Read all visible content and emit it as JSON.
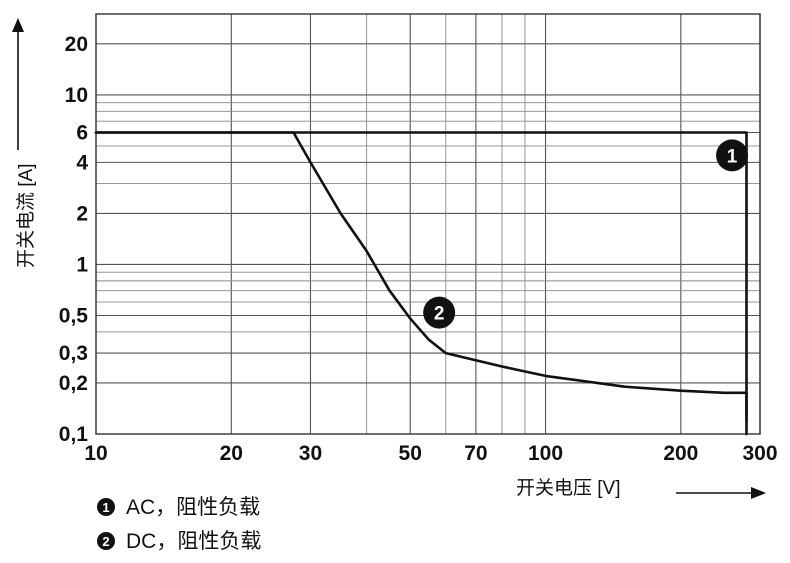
{
  "chart_data": {
    "type": "line",
    "title": "",
    "xlabel": "开关电压 [V]",
    "ylabel": "开关电流 [A]",
    "x_scale": "log",
    "y_scale": "log",
    "xlim": [
      10,
      300
    ],
    "ylim": [
      0.1,
      30
    ],
    "grid": true,
    "x_tick_values": [
      10,
      20,
      30,
      50,
      70,
      100,
      200,
      300
    ],
    "x_tick_labels": [
      "10",
      "20",
      "30",
      "50",
      "70",
      "100",
      "200",
      "300"
    ],
    "y_tick_values": [
      0.1,
      0.2,
      0.3,
      0.5,
      1,
      2,
      4,
      6,
      10,
      20
    ],
    "y_tick_labels": [
      "0,1",
      "0,2",
      "0,3",
      "0,5",
      "1",
      "2",
      "4",
      "6",
      "10",
      "20"
    ],
    "series": [
      {
        "name": "AC，阻性负载",
        "marker": "1",
        "color": "#111111",
        "x": [
          10,
          280,
          280
        ],
        "y": [
          6,
          6,
          0.1
        ]
      },
      {
        "name": "DC，阻性负载",
        "marker": "2",
        "color": "#111111",
        "x": [
          10,
          27.5,
          30,
          35,
          40,
          45,
          50,
          55,
          60,
          80,
          100,
          150,
          200,
          250,
          280,
          280
        ],
        "y": [
          6,
          6,
          4,
          2,
          1.2,
          0.7,
          0.48,
          0.36,
          0.3,
          0.25,
          0.22,
          0.19,
          0.18,
          0.175,
          0.175,
          0.12
        ]
      }
    ],
    "annotations": [
      {
        "text": "1",
        "x": 260,
        "y": 4.4
      },
      {
        "text": "2",
        "x": 58,
        "y": 0.52
      }
    ]
  }
}
